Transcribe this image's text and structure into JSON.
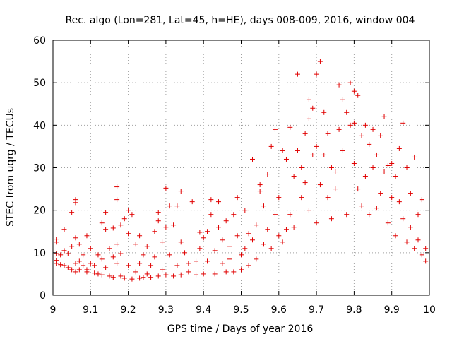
{
  "chart_data": {
    "type": "scatter",
    "title": "Rec. algo (Lon=281, Lat=45, h=HE), days 008-009, 2016, window 004",
    "xlabel": "GPS time / Days of year 2016",
    "ylabel": "STEC from uqrg / TECUs",
    "xlim": [
      9,
      10
    ],
    "ylim": [
      0,
      60
    ],
    "x_ticks": [
      9,
      9.1,
      9.2,
      9.3,
      9.4,
      9.5,
      9.6,
      9.7,
      9.8,
      9.9,
      10
    ],
    "x_tick_labels": [
      "9",
      "9.1",
      "9.2",
      "9.3",
      "9.4",
      "9.5",
      "9.6",
      "9.7",
      "9.8",
      "9.9",
      "10"
    ],
    "y_ticks": [
      0,
      10,
      20,
      30,
      40,
      50,
      60
    ],
    "y_tick_labels": [
      "0",
      "10",
      "20",
      "30",
      "40",
      "50",
      "60"
    ],
    "grid": true,
    "marker": "+",
    "color": "#e00000",
    "series": [
      {
        "name": "STEC",
        "points": [
          [
            9.01,
            9.8
          ],
          [
            9.01,
            12.5
          ],
          [
            9.01,
            13.2
          ],
          [
            9.01,
            8.2
          ],
          [
            9.01,
            7.5
          ],
          [
            9.02,
            7.2
          ],
          [
            9.02,
            9.5
          ],
          [
            9.03,
            10.5
          ],
          [
            9.03,
            15.5
          ],
          [
            9.03,
            7.0
          ],
          [
            9.04,
            6.5
          ],
          [
            9.04,
            9.8
          ],
          [
            9.05,
            19.5
          ],
          [
            9.05,
            11.5
          ],
          [
            9.05,
            6.0
          ],
          [
            9.06,
            21.8
          ],
          [
            9.06,
            22.5
          ],
          [
            9.06,
            13.5
          ],
          [
            9.06,
            7.5
          ],
          [
            9.06,
            5.5
          ],
          [
            9.07,
            12.0
          ],
          [
            9.07,
            8.0
          ],
          [
            9.07,
            6.0
          ],
          [
            9.08,
            7.0
          ],
          [
            9.08,
            9.5
          ],
          [
            9.09,
            14.0
          ],
          [
            9.09,
            6.0
          ],
          [
            9.09,
            5.5
          ],
          [
            9.1,
            7.5
          ],
          [
            9.1,
            11.0
          ],
          [
            9.11,
            7.0
          ],
          [
            9.11,
            5.2
          ],
          [
            9.12,
            9.5
          ],
          [
            9.12,
            5.0
          ],
          [
            9.13,
            17.0
          ],
          [
            9.13,
            8.5
          ],
          [
            9.13,
            4.8
          ],
          [
            9.14,
            19.5
          ],
          [
            9.14,
            15.5
          ],
          [
            9.14,
            6.5
          ],
          [
            9.15,
            4.5
          ],
          [
            9.15,
            11.0
          ],
          [
            9.16,
            15.8
          ],
          [
            9.16,
            9.0
          ],
          [
            9.16,
            4.2
          ],
          [
            9.17,
            25.5
          ],
          [
            9.17,
            22.5
          ],
          [
            9.17,
            12.0
          ],
          [
            9.17,
            7.5
          ],
          [
            9.18,
            4.5
          ],
          [
            9.18,
            16.5
          ],
          [
            9.18,
            9.8
          ],
          [
            9.19,
            4.0
          ],
          [
            9.19,
            18.0
          ],
          [
            9.2,
            20.0
          ],
          [
            9.2,
            14.5
          ],
          [
            9.2,
            7.0
          ],
          [
            9.21,
            3.8
          ],
          [
            9.21,
            19.0
          ],
          [
            9.22,
            5.5
          ],
          [
            9.22,
            12.0
          ],
          [
            9.23,
            7.5
          ],
          [
            9.23,
            4.0
          ],
          [
            9.23,
            14.0
          ],
          [
            9.24,
            9.5
          ],
          [
            9.24,
            4.2
          ],
          [
            9.25,
            11.5
          ],
          [
            9.25,
            5.0
          ],
          [
            9.26,
            4.2
          ],
          [
            9.26,
            7.0
          ],
          [
            9.27,
            15.0
          ],
          [
            9.27,
            9.0
          ],
          [
            9.28,
            4.5
          ],
          [
            9.28,
            19.5
          ],
          [
            9.28,
            17.5
          ],
          [
            9.29,
            6.0
          ],
          [
            9.29,
            12.5
          ],
          [
            9.3,
            25.2
          ],
          [
            9.3,
            16.0
          ],
          [
            9.3,
            4.8
          ],
          [
            9.31,
            9.5
          ],
          [
            9.31,
            21.0
          ],
          [
            9.32,
            4.5
          ],
          [
            9.32,
            16.5
          ],
          [
            9.33,
            21.0
          ],
          [
            9.33,
            7.0
          ],
          [
            9.34,
            24.5
          ],
          [
            9.34,
            12.5
          ],
          [
            9.34,
            4.8
          ],
          [
            9.35,
            10.0
          ],
          [
            9.36,
            5.5
          ],
          [
            9.36,
            7.5
          ],
          [
            9.37,
            22.0
          ],
          [
            9.38,
            8.0
          ],
          [
            9.38,
            4.8
          ],
          [
            9.39,
            14.8
          ],
          [
            9.39,
            11.0
          ],
          [
            9.4,
            5.0
          ],
          [
            9.4,
            13.5
          ],
          [
            9.41,
            15.0
          ],
          [
            9.41,
            8.0
          ],
          [
            9.42,
            22.5
          ],
          [
            9.42,
            19.0
          ],
          [
            9.43,
            5.0
          ],
          [
            9.43,
            10.5
          ],
          [
            9.44,
            22.0
          ],
          [
            9.44,
            16.0
          ],
          [
            9.45,
            7.5
          ],
          [
            9.45,
            13.0
          ],
          [
            9.46,
            5.5
          ],
          [
            9.46,
            17.5
          ],
          [
            9.47,
            11.5
          ],
          [
            9.47,
            8.5
          ],
          [
            9.48,
            19.0
          ],
          [
            9.48,
            5.5
          ],
          [
            9.49,
            14.0
          ],
          [
            9.49,
            23.0
          ],
          [
            9.5,
            9.5
          ],
          [
            9.5,
            6.0
          ],
          [
            9.51,
            20.0
          ],
          [
            9.51,
            11.0
          ],
          [
            9.52,
            14.5
          ],
          [
            9.52,
            7.0
          ],
          [
            9.53,
            32.0
          ],
          [
            9.53,
            13.0
          ],
          [
            9.54,
            8.5
          ],
          [
            9.54,
            16.5
          ],
          [
            9.55,
            26.0
          ],
          [
            9.55,
            24.5
          ],
          [
            9.56,
            21.0
          ],
          [
            9.56,
            12.0
          ],
          [
            9.57,
            28.5
          ],
          [
            9.57,
            15.5
          ],
          [
            9.58,
            35.0
          ],
          [
            9.58,
            11.0
          ],
          [
            9.59,
            39.0
          ],
          [
            9.59,
            19.0
          ],
          [
            9.6,
            14.0
          ],
          [
            9.6,
            23.0
          ],
          [
            9.61,
            34.0
          ],
          [
            9.61,
            12.5
          ],
          [
            9.62,
            32.0
          ],
          [
            9.62,
            15.5
          ],
          [
            9.63,
            39.5
          ],
          [
            9.63,
            19.0
          ],
          [
            9.64,
            28.0
          ],
          [
            9.64,
            16.0
          ],
          [
            9.65,
            52.0
          ],
          [
            9.65,
            34.0
          ],
          [
            9.66,
            23.0
          ],
          [
            9.66,
            30.0
          ],
          [
            9.67,
            38.0
          ],
          [
            9.67,
            26.5
          ],
          [
            9.68,
            46.0
          ],
          [
            9.68,
            41.5
          ],
          [
            9.68,
            20.0
          ],
          [
            9.69,
            44.0
          ],
          [
            9.69,
            33.0
          ],
          [
            9.7,
            52.0
          ],
          [
            9.7,
            35.0
          ],
          [
            9.7,
            17.0
          ],
          [
            9.71,
            55.0
          ],
          [
            9.71,
            26.0
          ],
          [
            9.72,
            43.0
          ],
          [
            9.72,
            33.0
          ],
          [
            9.73,
            38.0
          ],
          [
            9.73,
            23.0
          ],
          [
            9.74,
            30.0
          ],
          [
            9.74,
            18.0
          ],
          [
            9.75,
            29.0
          ],
          [
            9.75,
            25.0
          ],
          [
            9.76,
            49.5
          ],
          [
            9.76,
            39.0
          ],
          [
            9.77,
            46.0
          ],
          [
            9.77,
            34.0
          ],
          [
            9.78,
            43.0
          ],
          [
            9.78,
            19.0
          ],
          [
            9.79,
            50.0
          ],
          [
            9.79,
            40.0
          ],
          [
            9.8,
            48.0
          ],
          [
            9.8,
            40.5
          ],
          [
            9.8,
            31.0
          ],
          [
            9.81,
            47.0
          ],
          [
            9.81,
            25.0
          ],
          [
            9.82,
            37.5
          ],
          [
            9.82,
            21.0
          ],
          [
            9.83,
            40.0
          ],
          [
            9.83,
            28.0
          ],
          [
            9.84,
            35.5
          ],
          [
            9.84,
            19.0
          ],
          [
            9.85,
            39.0
          ],
          [
            9.85,
            30.0
          ],
          [
            9.86,
            33.0
          ],
          [
            9.86,
            20.5
          ],
          [
            9.87,
            37.5
          ],
          [
            9.87,
            24.0
          ],
          [
            9.88,
            42.0
          ],
          [
            9.88,
            29.0
          ],
          [
            9.89,
            30.5
          ],
          [
            9.89,
            17.0
          ],
          [
            9.9,
            31.0
          ],
          [
            9.9,
            23.0
          ],
          [
            9.91,
            28.0
          ],
          [
            9.91,
            14.0
          ],
          [
            9.92,
            34.5
          ],
          [
            9.92,
            22.0
          ],
          [
            9.93,
            40.5
          ],
          [
            9.93,
            18.0
          ],
          [
            9.94,
            30.0
          ],
          [
            9.94,
            12.5
          ],
          [
            9.95,
            24.0
          ],
          [
            9.95,
            16.0
          ],
          [
            9.96,
            32.5
          ],
          [
            9.96,
            11.0
          ],
          [
            9.97,
            19.0
          ],
          [
            9.97,
            13.0
          ],
          [
            9.98,
            22.5
          ],
          [
            9.98,
            9.5
          ],
          [
            9.99,
            11.0
          ],
          [
            9.99,
            8.0
          ]
        ]
      }
    ]
  }
}
